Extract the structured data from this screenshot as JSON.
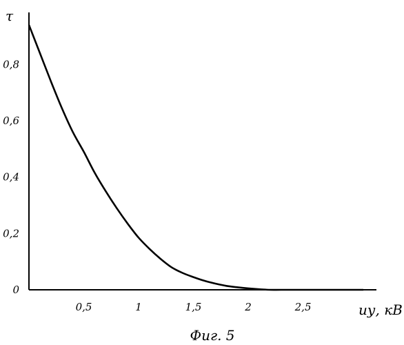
{
  "chart_data": {
    "type": "line",
    "title": "",
    "caption": "Фиг. 5",
    "xlabel": "uу, кВ",
    "ylabel": "τ",
    "xlim": [
      0,
      3.1
    ],
    "ylim": [
      0,
      0.96
    ],
    "x_ticks": [
      "0,5",
      "1",
      "1,5",
      "2",
      "2,5"
    ],
    "x_tick_values": [
      0.5,
      1,
      1.5,
      2,
      2.5
    ],
    "y_ticks": [
      "0",
      "0,2",
      "0,4",
      "0,6",
      "0,8"
    ],
    "y_tick_values": [
      0,
      0.2,
      0.4,
      0.6,
      0.8
    ],
    "grid": false,
    "series": [
      {
        "x": [
          0.0,
          0.1,
          0.2,
          0.3,
          0.4,
          0.5,
          0.6,
          0.7,
          0.8,
          0.9,
          1.0,
          1.1,
          1.2,
          1.3,
          1.4,
          1.5,
          1.6,
          1.7,
          1.8,
          1.9,
          2.0,
          2.1,
          2.2,
          2.3,
          2.5,
          2.8,
          3.05
        ],
        "y": [
          0.94,
          0.84,
          0.74,
          0.645,
          0.56,
          0.49,
          0.415,
          0.35,
          0.29,
          0.235,
          0.185,
          0.145,
          0.11,
          0.08,
          0.06,
          0.045,
          0.032,
          0.022,
          0.014,
          0.009,
          0.005,
          0.002,
          0.0,
          0.0,
          0.0,
          0.0,
          0.0
        ]
      }
    ]
  }
}
